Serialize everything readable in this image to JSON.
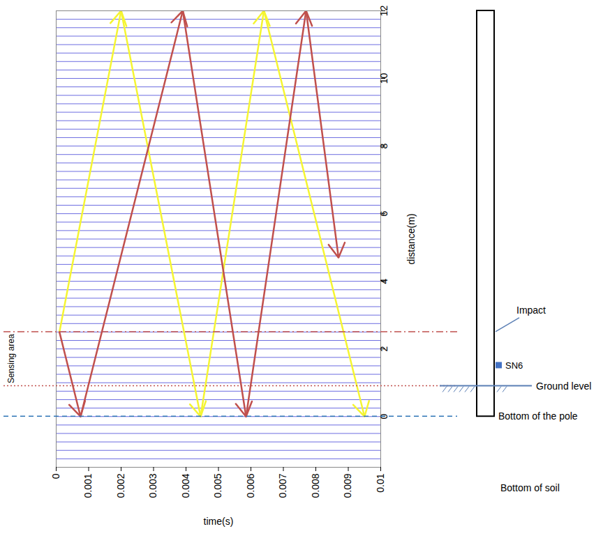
{
  "chart_data": {
    "type": "wave_propagation",
    "x_label": "time(s)",
    "y_label": "distance(m)",
    "xlim": [
      0,
      0.01
    ],
    "xticks": [
      0,
      0.001,
      0.002,
      0.003,
      0.004,
      0.005,
      0.006,
      0.007,
      0.008,
      0.009,
      0.01
    ],
    "ylim": [
      -1.5,
      12
    ],
    "yticks": [
      0,
      2,
      4,
      6,
      8,
      10,
      12
    ],
    "traces": {
      "color": "#3b3bd6",
      "distances": [
        -1.5,
        -1.25,
        -1,
        -0.75,
        -0.5,
        -0.25,
        0,
        0.25,
        0.5,
        0.75,
        1,
        1.25,
        1.5,
        1.75,
        2,
        2.25,
        2.5,
        2.75,
        3,
        3.25,
        3.5,
        3.75,
        4,
        4.25,
        4.5,
        4.75,
        5,
        5.25,
        5.5,
        5.75,
        6,
        6.25,
        6.5,
        6.75,
        7,
        7.25,
        7.5,
        7.75,
        8,
        8.25,
        8.5,
        8.75,
        9,
        9.25,
        9.5,
        9.75,
        10,
        10.25,
        10.5,
        10.75,
        11,
        11.25,
        11.5,
        11.75,
        12
      ]
    },
    "series": [
      {
        "type": "arrow",
        "color": "#f5f532",
        "x": [
          0.0001,
          0.002,
          0.00445,
          0.0064,
          0.0095
        ],
        "y": [
          2.5,
          12,
          0,
          12,
          0
        ]
      },
      {
        "type": "arrow",
        "color": "#c0504d",
        "x": [
          0.0001,
          0.00075,
          0.0039,
          0.00585,
          0.0077,
          0.0087
        ],
        "y": [
          2.5,
          0,
          12,
          0,
          12,
          4.7
        ]
      }
    ],
    "reference_lines": [
      {
        "value": 2.5,
        "color": "#c0504d",
        "line_style": "dashdot"
      },
      {
        "value": 0.9,
        "color": "#c0504d",
        "line_style": "dotted"
      },
      {
        "value": 0,
        "color": "#2e75b6",
        "line_style": "dashed"
      }
    ],
    "sensing_area": {
      "text": "Sensing area",
      "from": 0.9,
      "to": 2.5
    },
    "pole": {
      "top": 12,
      "bottom": 0,
      "bottom_label": "Bottom of the pole",
      "impact": {
        "label": "Impact",
        "position": 2.5
      },
      "sensor": {
        "label": "SN6",
        "position": 1.5,
        "color": "#4472c4"
      },
      "ground": {
        "label": "Ground level",
        "position": 0.9
      },
      "soil_label": "Bottom of soil"
    }
  }
}
